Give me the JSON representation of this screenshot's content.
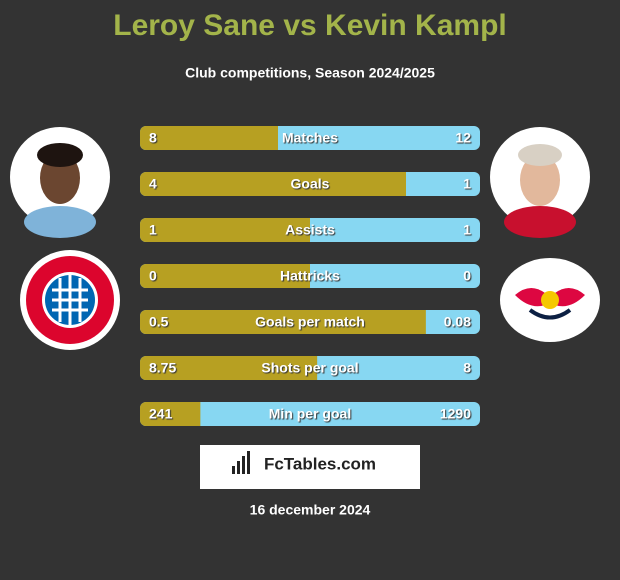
{
  "header": {
    "title": "Leroy Sane vs Kevin Kampl",
    "subtitle": "Club competitions, Season 2024/2025"
  },
  "rows": [
    {
      "label": "Matches",
      "left": 8,
      "right": 12
    },
    {
      "label": "Goals",
      "left": 4,
      "right": 1
    },
    {
      "label": "Assists",
      "left": 1,
      "right": 1
    },
    {
      "label": "Hattricks",
      "left": 0,
      "right": 0
    },
    {
      "label": "Goals per match",
      "left": 0.5,
      "right": 0.08
    },
    {
      "label": "Shots per goal",
      "left": 8.75,
      "right": 8
    },
    {
      "label": "Min per goal",
      "left": 241,
      "right": 1290
    }
  ],
  "brand": "FcTables.com",
  "date": "16 december 2024"
}
